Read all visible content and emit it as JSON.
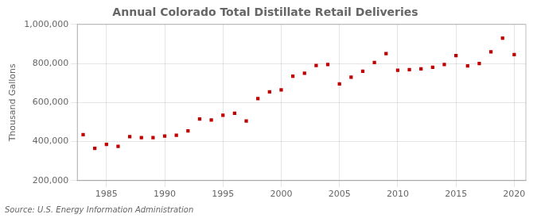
{
  "chart_data": {
    "type": "scatter",
    "title": "Annual Colorado Total Distillate Retail Deliveries",
    "ylabel": "Thousand Gallons",
    "source": "Source: U.S. Energy Information Administration",
    "x": [
      1983,
      1984,
      1985,
      1986,
      1987,
      1988,
      1989,
      1990,
      1991,
      1992,
      1993,
      1994,
      1995,
      1996,
      1997,
      1998,
      1999,
      2000,
      2001,
      2002,
      2003,
      2004,
      2005,
      2006,
      2007,
      2008,
      2009,
      2010,
      2011,
      2012,
      2013,
      2014,
      2015,
      2016,
      2017,
      2018,
      2019,
      2020
    ],
    "values": [
      435000,
      365000,
      385000,
      375000,
      425000,
      420000,
      420000,
      428000,
      432000,
      455000,
      515000,
      510000,
      535000,
      545000,
      505000,
      620000,
      655000,
      665000,
      735000,
      750000,
      790000,
      795000,
      695000,
      730000,
      760000,
      805000,
      850000,
      765000,
      768000,
      772000,
      780000,
      795000,
      840000,
      788000,
      800000,
      860000,
      930000,
      845000
    ],
    "color": "#c00000",
    "marker": "square",
    "xlim": [
      1982.5,
      2021
    ],
    "ylim": [
      200000,
      1000000
    ],
    "xticks": [
      1985,
      1990,
      1995,
      2000,
      2005,
      2010,
      2015,
      2020
    ],
    "yticks": [
      {
        "value": 200000,
        "label": "200,000"
      },
      {
        "value": 400000,
        "label": "400,000"
      },
      {
        "value": 600000,
        "label": "600,000"
      },
      {
        "value": 800000,
        "label": "800,000"
      },
      {
        "value": 1000000,
        "label": "1,000,000"
      }
    ],
    "grid": true
  }
}
